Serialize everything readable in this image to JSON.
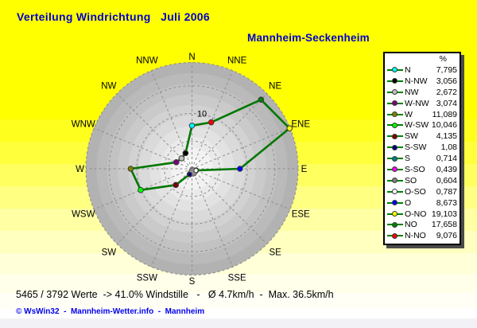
{
  "title": "Verteilung Windrichtung   Juli 2006",
  "station": "Mannheim-Seckenheim",
  "colors": {
    "title_text": "#0000cc",
    "copyright_text": "#0000ee",
    "page_background_top": "#ffff00",
    "page_background_bottom": "#ffffff"
  },
  "chart_data": {
    "type": "radar",
    "title": "Verteilung Windrichtung   Juli 2006",
    "subtitle": "Mannheim-Seckenheim",
    "categories": [
      "N",
      "NNE",
      "NE",
      "ENE",
      "E",
      "ESE",
      "SE",
      "SSE",
      "S",
      "SSW",
      "SW",
      "WSW",
      "W",
      "WNW",
      "NW",
      "NNW"
    ],
    "series": [
      {
        "name": "Verteilung %",
        "values": [
          7.795,
          9.076,
          17.658,
          19.103,
          8.673,
          0.787,
          0.604,
          0.439,
          0.714,
          1.08,
          4.135,
          10.046,
          11.089,
          3.074,
          2.672,
          3.056
        ],
        "marker_colors": [
          "#00FFFF",
          "#FF0000",
          "#008000",
          "#FFFF00",
          "#0000FF",
          "#FFFFFF",
          "#808080",
          "#FF00FF",
          "#008080",
          "#000080",
          "#800000",
          "#00FF00",
          "#808000",
          "#800080",
          "#C0C0C0",
          "#000000"
        ]
      }
    ],
    "scale_max": 19.2,
    "rings": [
      5,
      10,
      15
    ],
    "ring_label": {
      "text": "10",
      "ring": 10
    },
    "grid_color": "#8f8f8f",
    "line_color": "#007700",
    "disc_shading": {
      "outer": "#b2b2b2",
      "inner": "#fafafa",
      "bands": 10
    },
    "legend": {
      "header": "%",
      "line_color": "#008000",
      "entries": [
        {
          "label": "N",
          "value": "7,795",
          "color": "#00FFFF"
        },
        {
          "label": "N-NW",
          "value": "3,056",
          "color": "#000000"
        },
        {
          "label": "NW",
          "value": "2,672",
          "color": "#C0C0C0"
        },
        {
          "label": "W-NW",
          "value": "3,074",
          "color": "#800080"
        },
        {
          "label": "W",
          "value": "11,089",
          "color": "#808000"
        },
        {
          "label": "W-SW",
          "value": "10,046",
          "color": "#00FF00"
        },
        {
          "label": "SW",
          "value": "4,135",
          "color": "#800000"
        },
        {
          "label": "S-SW",
          "value": "1,08",
          "color": "#000080"
        },
        {
          "label": "S",
          "value": "0,714",
          "color": "#008080"
        },
        {
          "label": "S-SO",
          "value": "0,439",
          "color": "#FF00FF"
        },
        {
          "label": "SO",
          "value": "0,604",
          "color": "#808080"
        },
        {
          "label": "O-SO",
          "value": "0,787",
          "color": "#FFFFFF"
        },
        {
          "label": "O",
          "value": "8,673",
          "color": "#0000FF"
        },
        {
          "label": "O-NO",
          "value": "19,103",
          "color": "#FFFF00"
        },
        {
          "label": "NO",
          "value": "17,658",
          "color": "#008000"
        },
        {
          "label": "N-NO",
          "value": "9,076",
          "color": "#FF0000"
        }
      ]
    }
  },
  "footer": {
    "status": "5465 / 3792 Werte  -> 41.0% Windstille   -   Ø 4.7km/h  -  Max. 36.5km/h",
    "copyright": "© WsWin32  -  Mannheim-Wetter.info  -  Mannheim"
  }
}
